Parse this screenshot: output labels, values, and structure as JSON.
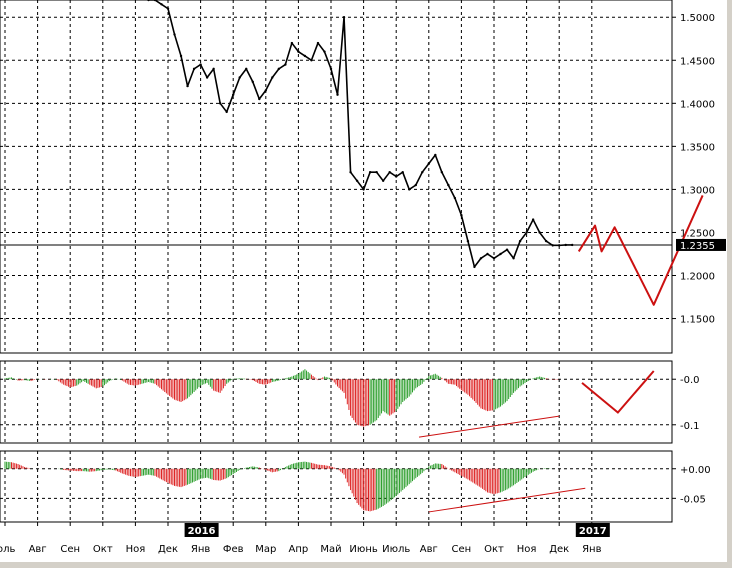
{
  "chart_data": [
    {
      "type": "line",
      "panel": "price",
      "ylim": [
        1.11,
        1.52
      ],
      "yticks": [
        "1.5000",
        "1.4500",
        "1.4000",
        "1.3500",
        "1.3000",
        "1.2500",
        "1.2000",
        "1.1500"
      ],
      "ytick_values": [
        1.5,
        1.45,
        1.4,
        1.35,
        1.3,
        1.25,
        1.2,
        1.15
      ],
      "current_price_label": "1.2355",
      "current_price": 1.2355,
      "series": [
        {
          "style": "black-price",
          "x": [
            4.4,
            4.6,
            4.8,
            5.0,
            5.2,
            5.4,
            5.6,
            5.8,
            6.0,
            6.2,
            6.4,
            6.6,
            6.8,
            7.0,
            7.2,
            7.4,
            7.6,
            7.8,
            8.0,
            8.2,
            8.4,
            8.6,
            8.8,
            9.0,
            9.2,
            9.4,
            9.6,
            9.8,
            10.0,
            10.2,
            10.4,
            10.6,
            10.8,
            11.0,
            11.2,
            11.4,
            11.6,
            11.8,
            12.0,
            12.2,
            12.4,
            12.6,
            12.8,
            13.0,
            13.2,
            13.4,
            13.6,
            13.8,
            14.0,
            14.2,
            14.4,
            14.6,
            14.8,
            15.0,
            15.2,
            15.4,
            15.6,
            15.8,
            16.0,
            16.2,
            16.4,
            16.6,
            16.8,
            17.0,
            17.2,
            17.4
          ],
          "y": [
            1.52,
            1.52,
            1.515,
            1.51,
            1.48,
            1.455,
            1.42,
            1.44,
            1.445,
            1.43,
            1.44,
            1.4,
            1.39,
            1.41,
            1.43,
            1.44,
            1.425,
            1.405,
            1.415,
            1.43,
            1.44,
            1.445,
            1.47,
            1.46,
            1.455,
            1.45,
            1.47,
            1.46,
            1.44,
            1.41,
            1.5,
            1.32,
            1.31,
            1.3,
            1.32,
            1.32,
            1.31,
            1.32,
            1.315,
            1.32,
            1.3,
            1.305,
            1.32,
            1.33,
            1.34,
            1.32,
            1.305,
            1.29,
            1.27,
            1.24,
            1.21,
            1.22,
            1.225,
            1.22,
            1.225,
            1.23,
            1.22,
            1.24,
            1.25,
            1.265,
            1.25,
            1.24,
            1.235,
            1.235,
            1.2355,
            1.2355
          ]
        },
        {
          "style": "red-forecast",
          "x": [
            17.6,
            18.1,
            18.3,
            18.7,
            19.9,
            21.4
          ],
          "y": [
            1.228,
            1.258,
            1.228,
            1.256,
            1.166,
            1.293
          ]
        }
      ]
    },
    {
      "type": "bar",
      "panel": "oscillator-1",
      "ylim": [
        -0.14,
        0.04
      ],
      "yticks": [
        "-0.0",
        "-0.1"
      ],
      "ytick_values": [
        0.0,
        -0.1
      ],
      "x": [
        0.0,
        0.2,
        0.4,
        0.6,
        0.8,
        1.0,
        1.2,
        1.4,
        1.6,
        1.8,
        2.0,
        2.2,
        2.4,
        2.6,
        2.8,
        3.0,
        3.2,
        3.4,
        3.6,
        3.8,
        4.0,
        4.2,
        4.4,
        4.6,
        4.8,
        5.0,
        5.2,
        5.4,
        5.6,
        5.8,
        6.0,
        6.2,
        6.4,
        6.6,
        6.8,
        7.0,
        7.2,
        7.4,
        7.6,
        7.8,
        8.0,
        8.2,
        8.4,
        8.6,
        8.8,
        9.0,
        9.2,
        9.4,
        9.6,
        9.8,
        10.0,
        10.2,
        10.4,
        10.6,
        10.8,
        11.0,
        11.2,
        11.4,
        11.6,
        11.8,
        12.0,
        12.2,
        12.4,
        12.6,
        12.8,
        13.0,
        13.2,
        13.4,
        13.6,
        13.8,
        14.0,
        14.2,
        14.4,
        14.6,
        14.8,
        15.0,
        15.2,
        15.4,
        15.6,
        15.8,
        16.0,
        16.2,
        16.4,
        16.6,
        16.8
      ],
      "values": [
        0.002,
        0.004,
        -0.003,
        -0.002,
        -0.004,
        0.001,
        -0.001,
        0.001,
        -0.002,
        -0.012,
        -0.018,
        -0.014,
        -0.004,
        -0.012,
        -0.02,
        -0.016,
        -0.004,
        0.002,
        -0.003,
        -0.012,
        -0.014,
        -0.01,
        -0.006,
        -0.01,
        -0.022,
        -0.034,
        -0.045,
        -0.05,
        -0.042,
        -0.028,
        -0.014,
        -0.008,
        -0.025,
        -0.03,
        -0.01,
        0.001,
        0.002,
        0.001,
        -0.002,
        -0.01,
        -0.012,
        -0.006,
        -0.003,
        0.002,
        0.006,
        0.012,
        0.022,
        0.01,
        -0.002,
        0.006,
        0.002,
        -0.016,
        -0.03,
        -0.08,
        -0.1,
        -0.104,
        -0.1,
        -0.09,
        -0.07,
        -0.08,
        -0.07,
        -0.05,
        -0.038,
        -0.02,
        -0.01,
        0.007,
        0.012,
        0.003,
        -0.01,
        -0.012,
        -0.024,
        -0.034,
        -0.048,
        -0.064,
        -0.07,
        -0.068,
        -0.06,
        -0.048,
        -0.03,
        -0.016,
        -0.006,
        0.002,
        0.006,
        0.002,
        -0.001
      ],
      "forecast": {
        "x": [
          17.7,
          18.8,
          19.9
        ],
        "y": [
          -0.008,
          -0.073,
          0.018
        ]
      },
      "trendline": {
        "x": [
          12.7,
          17.0
        ],
        "y": [
          -0.127,
          -0.081
        ]
      }
    },
    {
      "type": "bar",
      "panel": "oscillator-2",
      "ylim": [
        -0.09,
        0.03
      ],
      "yticks": [
        "+0.00",
        "-0.05"
      ],
      "ytick_values": [
        0.0,
        -0.05
      ],
      "x": [
        0.0,
        0.2,
        0.4,
        0.6,
        0.8,
        1.0,
        1.2,
        1.4,
        1.6,
        1.8,
        2.0,
        2.2,
        2.4,
        2.6,
        2.8,
        3.0,
        3.2,
        3.4,
        3.6,
        3.8,
        4.0,
        4.2,
        4.4,
        4.6,
        4.8,
        5.0,
        5.2,
        5.4,
        5.6,
        5.8,
        6.0,
        6.2,
        6.4,
        6.6,
        6.8,
        7.0,
        7.2,
        7.4,
        7.6,
        7.8,
        8.0,
        8.2,
        8.4,
        8.6,
        8.8,
        9.0,
        9.2,
        9.4,
        9.6,
        9.8,
        10.0,
        10.2,
        10.4,
        10.6,
        10.8,
        11.0,
        11.2,
        11.4,
        11.6,
        11.8,
        12.0,
        12.2,
        12.4,
        12.6,
        12.8,
        13.0,
        13.2,
        13.4,
        13.6,
        13.8,
        14.0,
        14.2,
        14.4,
        14.6,
        14.8,
        15.0,
        15.2,
        15.4,
        15.6,
        15.8,
        16.0,
        16.2,
        16.4,
        16.6,
        16.8
      ],
      "values": [
        0.012,
        0.011,
        0.008,
        0.003,
        0.0,
        0.0,
        0.0,
        0.0,
        0.0,
        -0.002,
        -0.003,
        -0.004,
        -0.004,
        -0.005,
        -0.004,
        -0.002,
        -0.001,
        -0.003,
        -0.008,
        -0.012,
        -0.014,
        -0.012,
        -0.01,
        -0.012,
        -0.018,
        -0.024,
        -0.029,
        -0.031,
        -0.027,
        -0.022,
        -0.017,
        -0.015,
        -0.019,
        -0.02,
        -0.016,
        -0.009,
        -0.002,
        0.002,
        0.004,
        0.002,
        -0.002,
        -0.006,
        -0.004,
        0.003,
        0.008,
        0.011,
        0.012,
        0.01,
        0.007,
        0.006,
        0.004,
        0.0,
        -0.01,
        -0.036,
        -0.058,
        -0.07,
        -0.072,
        -0.069,
        -0.063,
        -0.055,
        -0.046,
        -0.036,
        -0.026,
        -0.016,
        -0.007,
        0.004,
        0.009,
        0.008,
        0.0,
        -0.006,
        -0.012,
        -0.018,
        -0.025,
        -0.032,
        -0.04,
        -0.043,
        -0.04,
        -0.035,
        -0.028,
        -0.02,
        -0.012,
        -0.005,
        0.0,
        0.001,
        0.0
      ],
      "trendline": {
        "x": [
          13.0,
          17.8
        ],
        "y": [
          -0.073,
          -0.033
        ]
      }
    }
  ],
  "x_axis": {
    "labels": [
      "юль",
      "Авг",
      "Сен",
      "Окт",
      "Ноя",
      "Дек",
      "Янв",
      "Фев",
      "Мар",
      "Апр",
      "Май",
      "Июнь",
      "Июль",
      "Авг",
      "Сен",
      "Окт",
      "Ноя",
      "Дек",
      "Янв"
    ],
    "positions": [
      0,
      1,
      2,
      3,
      4,
      5,
      6,
      7,
      8,
      9,
      10,
      11,
      12,
      13,
      14,
      15,
      16,
      17,
      18
    ],
    "year_markers": [
      {
        "label": "2016",
        "at": 6
      },
      {
        "label": "2017",
        "at": 18
      }
    ]
  },
  "colors": {
    "background": "#ffffff",
    "grid": "#000000",
    "price": "#000000",
    "forecast": "#cc1111",
    "histogram_rise": "#2a9d2a",
    "histogram_fall": "#dd2222",
    "year_box": "#000000"
  }
}
